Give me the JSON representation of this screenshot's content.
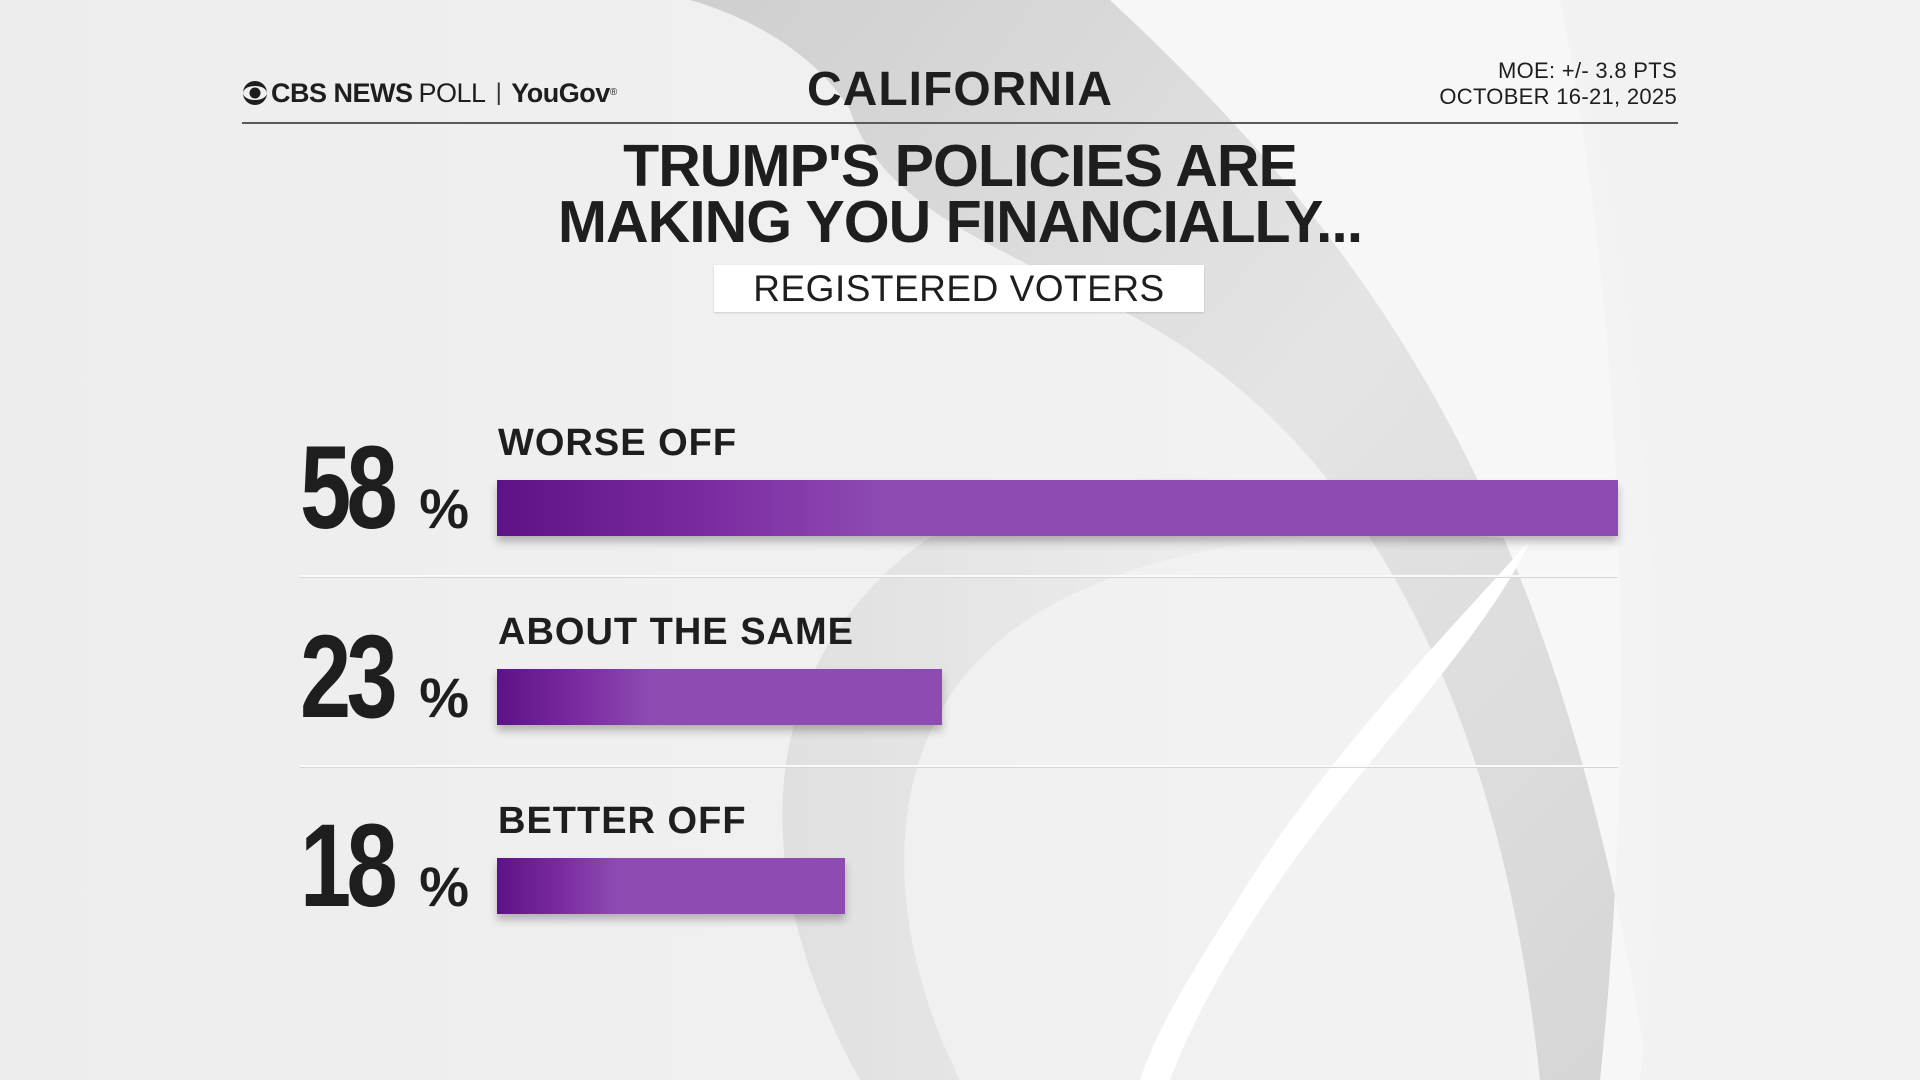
{
  "header": {
    "brand_network": "CBS NEWS",
    "brand_poll": "POLL",
    "brand_separator": "|",
    "brand_partner": "YouGov",
    "region": "CALIFORNIA",
    "moe": "MOE: +/- 3.8 PTS",
    "dates": "OCTOBER 16-21, 2025"
  },
  "chart_data": {
    "type": "bar",
    "title_lines": [
      "TRUMP'S POLICIES ARE",
      "MAKING YOU FINANCIALLY..."
    ],
    "subtitle": "REGISTERED VOTERS",
    "categories": [
      "WORSE OFF",
      "ABOUT THE SAME",
      "BETTER OFF"
    ],
    "values": [
      58,
      23,
      18
    ],
    "value_labels": [
      "58",
      "23",
      "18"
    ],
    "unit": "%",
    "xlim": [
      0,
      58
    ],
    "bar_color": "#8e4cb3",
    "bar_color_dark": "#5e1288"
  }
}
